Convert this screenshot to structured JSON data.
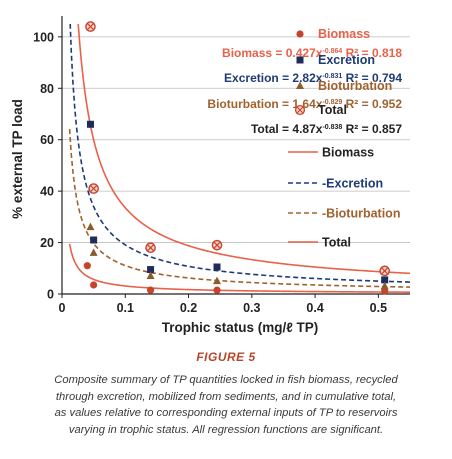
{
  "chart_data": {
    "type": "scatter",
    "xlabel": "Trophic status (mg/ℓ TP)",
    "ylabel": "% external TP load",
    "xlim": [
      0,
      0.55
    ],
    "ylim": [
      0,
      105
    ],
    "x_ticks": [
      "0",
      "0.1",
      "0.2",
      "0.3",
      "0.4",
      "0.5"
    ],
    "y_ticks": [
      "0",
      "20",
      "40",
      "60",
      "80",
      "100"
    ],
    "grid": "horizontal",
    "legend_position": "right",
    "series": [
      {
        "name": "Biomass",
        "marker": "circle",
        "color": "#c8432b",
        "points": [
          [
            0.04,
            11
          ],
          [
            0.05,
            3.5
          ],
          [
            0.14,
            1.5
          ],
          [
            0.245,
            1.5
          ],
          [
            0.51,
            1.2
          ]
        ]
      },
      {
        "name": "Excretion",
        "marker": "square",
        "color": "#1f2d5a",
        "points": [
          [
            0.045,
            66
          ],
          [
            0.05,
            21
          ],
          [
            0.14,
            9.5
          ],
          [
            0.245,
            10.5
          ],
          [
            0.51,
            5.5
          ]
        ]
      },
      {
        "name": "Bioturbation",
        "marker": "triangle",
        "color": "#8c5a2b",
        "points": [
          [
            0.045,
            26
          ],
          [
            0.05,
            16
          ],
          [
            0.14,
            7
          ],
          [
            0.245,
            5
          ],
          [
            0.51,
            3
          ]
        ]
      },
      {
        "name": "Total",
        "marker": "circle-x",
        "color": "#c8432b",
        "points": [
          [
            0.045,
            104
          ],
          [
            0.05,
            41
          ],
          [
            0.14,
            18
          ],
          [
            0.245,
            19
          ],
          [
            0.51,
            9
          ]
        ]
      }
    ],
    "fits": [
      {
        "name": "Biomass",
        "a": 0.427,
        "b": -0.864,
        "style": "solid",
        "color": "#e8614a",
        "equation": "Biomass = 0.427x",
        "exponent": "-0.864",
        "r2": "R² = 0.818"
      },
      {
        "name": "Excretion",
        "a": 2.82,
        "b": -0.831,
        "style": "dash",
        "color": "#1f3a78",
        "equation": "Excretion = 2.82x",
        "exponent": "-0.831",
        "r2": "R² = 0.794"
      },
      {
        "name": "Bioturbation",
        "a": 1.64,
        "b": -0.829,
        "style": "dash",
        "color": "#a0622e",
        "equation": "Bioturbation = 1.64x",
        "exponent": "-0.829",
        "r2": "R² = 0.952"
      },
      {
        "name": "Total",
        "a": 4.87,
        "b": -0.838,
        "style": "solid",
        "color": "#e8614a",
        "equation": "Total = 4.87x",
        "exponent": "-0.838",
        "r2": "R² = 0.857"
      }
    ]
  },
  "caption": {
    "figure_label": "FIGURE 5",
    "lines": [
      "Composite summary of TP quantities locked in fish biomass, recycled",
      "through excretion, mobilized from sediments, and in cumulative total,",
      "as values relative to corresponding external inputs of TP to reservoirs",
      "varying in trophic status. All regression functions are significant."
    ]
  }
}
